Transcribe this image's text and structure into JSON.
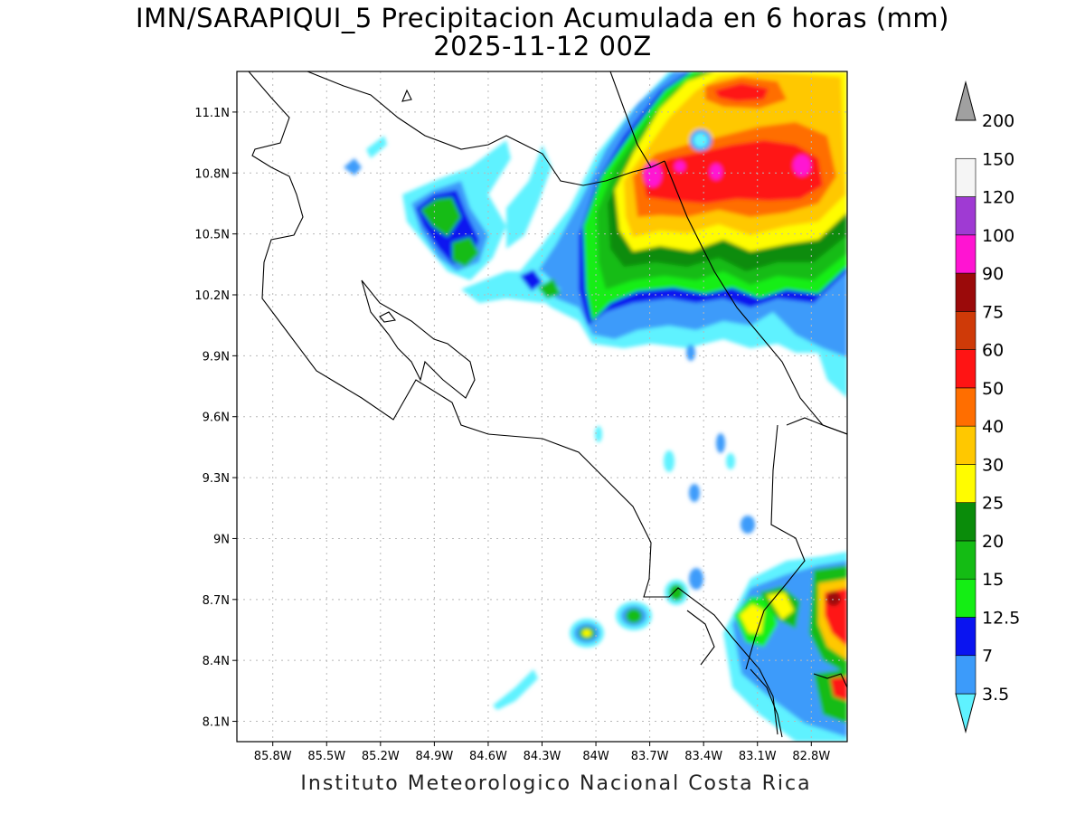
{
  "title": {
    "line1": "IMN/SARAPIQUI_5 Precipitacion Acumulada en 6 horas (mm)",
    "line2": "2025-11-12 00Z"
  },
  "footer": "Instituto Meteorologico Nacional Costa Rica",
  "map_extent": {
    "lon": [
      -86.0,
      -82.6
    ],
    "lat": [
      8.0,
      11.3
    ]
  },
  "axes": {
    "lon_ticks": [
      {
        "value": -85.8,
        "label": "85.8W"
      },
      {
        "value": -85.5,
        "label": "85.5W"
      },
      {
        "value": -85.2,
        "label": "85.2W"
      },
      {
        "value": -84.9,
        "label": "84.9W"
      },
      {
        "value": -84.6,
        "label": "84.6W"
      },
      {
        "value": -84.3,
        "label": "84.3W"
      },
      {
        "value": -84.0,
        "label": "84W"
      },
      {
        "value": -83.7,
        "label": "83.7W"
      },
      {
        "value": -83.4,
        "label": "83.4W"
      },
      {
        "value": -83.1,
        "label": "83.1W"
      },
      {
        "value": -82.8,
        "label": "82.8W"
      }
    ],
    "lat_ticks": [
      {
        "value": 11.1,
        "label": "11.1N"
      },
      {
        "value": 10.8,
        "label": "10.8N"
      },
      {
        "value": 10.5,
        "label": "10.5N"
      },
      {
        "value": 10.2,
        "label": "10.2N"
      },
      {
        "value": 9.9,
        "label": "9.9N"
      },
      {
        "value": 9.6,
        "label": "9.6N"
      },
      {
        "value": 9.3,
        "label": "9.3N"
      },
      {
        "value": 9.0,
        "label": "9N"
      },
      {
        "value": 8.7,
        "label": "8.7N"
      },
      {
        "value": 8.4,
        "label": "8.4N"
      },
      {
        "value": 8.1,
        "label": "8.1N"
      }
    ]
  },
  "colorbar": {
    "levels": [
      {
        "label": "3.5",
        "color": "#5ff2ff"
      },
      {
        "label": "7",
        "color": "#3c9bfa"
      },
      {
        "label": "12.5",
        "color": "#0a14f0"
      },
      {
        "label": "15",
        "color": "#14ee14"
      },
      {
        "label": "20",
        "color": "#14bc14"
      },
      {
        "label": "25",
        "color": "#0a8c0a"
      },
      {
        "label": "30",
        "color": "#fffc00"
      },
      {
        "label": "40",
        "color": "#ffc800"
      },
      {
        "label": "50",
        "color": "#ff6e00"
      },
      {
        "label": "60",
        "color": "#ff1414"
      },
      {
        "label": "75",
        "color": "#cf3a08"
      },
      {
        "label": "90",
        "color": "#9b0a0a"
      },
      {
        "label": "100",
        "color": "#ff14d2"
      },
      {
        "label": "120",
        "color": "#9f3ad3"
      },
      {
        "label": "150",
        "color": "#f5f5f5"
      },
      {
        "label": "200",
        "color": "#a0a0a0"
      }
    ]
  }
}
